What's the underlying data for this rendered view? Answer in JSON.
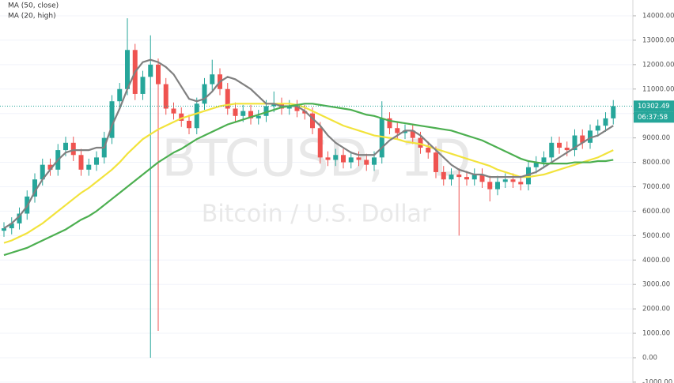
{
  "chart_data": {
    "type": "candlestick",
    "watermark_symbol": "BTCUSD, 1D",
    "watermark_name": "Bitcoin / U.S. Dollar",
    "open": [
      5200,
      5300,
      5500,
      5900,
      6600,
      7300,
      7900,
      7700,
      8500,
      8800,
      8300,
      7700,
      7900,
      8200,
      9000,
      10500,
      11000,
      12600,
      10800,
      11500,
      12000,
      11200,
      10200,
      10000,
      9700,
      9400,
      10400,
      11200,
      11600,
      11000,
      10200,
      9900,
      10100,
      9800,
      9900,
      10300,
      10400,
      10200,
      10300,
      10100,
      10000,
      9400,
      8200,
      8100,
      8300,
      8000,
      8200,
      8100,
      7900,
      8200,
      9800,
      9400,
      9200,
      9300,
      9000,
      8600,
      8400,
      7600,
      7300,
      7500,
      7400,
      7300,
      7500,
      7200,
      6900,
      7200,
      7300,
      7200,
      7100,
      7800,
      8000,
      8200,
      8800,
      8600,
      8500,
      9100,
      8800,
      9300,
      9500,
      9800
    ],
    "high": [
      5550,
      5750,
      6150,
      6850,
      7550,
      8150,
      8150,
      8750,
      9050,
      9050,
      8550,
      8150,
      8450,
      9250,
      10750,
      11250,
      13900,
      12850,
      11750,
      13200,
      12250,
      11450,
      10450,
      10250,
      9950,
      10650,
      11450,
      12200,
      11850,
      11250,
      10450,
      10350,
      10350,
      10150,
      10550,
      10900,
      10650,
      10550,
      10550,
      10350,
      10250,
      9650,
      8450,
      8550,
      8550,
      8450,
      8450,
      8350,
      8450,
      10500,
      10050,
      9650,
      9550,
      9550,
      9250,
      8850,
      8650,
      7850,
      7750,
      7750,
      7650,
      7750,
      7750,
      7450,
      7450,
      7550,
      7550,
      7450,
      8050,
      8250,
      8450,
      9050,
      9050,
      8850,
      9350,
      9350,
      9550,
      9750,
      10050,
      10550
    ],
    "low": [
      4950,
      5050,
      5250,
      5650,
      6350,
      7050,
      7450,
      7450,
      8250,
      8050,
      7450,
      7450,
      7650,
      7950,
      8750,
      10250,
      10750,
      10550,
      10550,
      0,
      1100,
      9950,
      9750,
      9450,
      9150,
      9150,
      10150,
      10950,
      10750,
      9950,
      9650,
      9650,
      9550,
      9550,
      9650,
      10050,
      9950,
      9950,
      9850,
      9750,
      9150,
      7950,
      7850,
      7850,
      7750,
      7750,
      7850,
      7650,
      7650,
      7950,
      9150,
      8950,
      8950,
      8750,
      8350,
      8150,
      7350,
      7050,
      7050,
      5000,
      7050,
      7050,
      6950,
      6400,
      6650,
      6950,
      6950,
      6850,
      6850,
      7550,
      7750,
      7950,
      8350,
      8250,
      8250,
      8550,
      8550,
      9050,
      9250,
      9550
    ],
    "close": [
      5300,
      5500,
      5900,
      6600,
      7300,
      7900,
      7700,
      8500,
      8800,
      8300,
      7700,
      7900,
      8200,
      9000,
      10500,
      11000,
      12600,
      10800,
      11500,
      12000,
      11200,
      10200,
      10000,
      9700,
      9400,
      10400,
      11200,
      11600,
      11000,
      10200,
      9900,
      10100,
      9800,
      9900,
      10300,
      10400,
      10200,
      10300,
      10100,
      10000,
      9400,
      8200,
      8100,
      8300,
      8000,
      8200,
      8100,
      7900,
      8200,
      9800,
      9400,
      9200,
      9300,
      9000,
      8600,
      8400,
      7600,
      7300,
      7500,
      7400,
      7300,
      7500,
      7200,
      6900,
      7200,
      7300,
      7200,
      7100,
      7800,
      8000,
      8200,
      8800,
      8600,
      8500,
      9100,
      8800,
      9300,
      9500,
      9800,
      10300
    ],
    "up_color": "#26a69a",
    "down_color": "#ef5350",
    "series": [
      {
        "name": "MA (50, close)",
        "color": "#f2e33c",
        "values": [
          4700,
          4800,
          4950,
          5100,
          5300,
          5500,
          5750,
          6000,
          6250,
          6500,
          6750,
          6950,
          7200,
          7450,
          7700,
          8000,
          8350,
          8650,
          8950,
          9150,
          9350,
          9500,
          9650,
          9800,
          9900,
          10000,
          10100,
          10200,
          10300,
          10350,
          10400,
          10400,
          10400,
          10400,
          10400,
          10400,
          10400,
          10400,
          10350,
          10250,
          10100,
          9950,
          9800,
          9650,
          9500,
          9400,
          9300,
          9200,
          9100,
          9050,
          9000,
          8950,
          8850,
          8800,
          8750,
          8650,
          8550,
          8450,
          8350,
          8250,
          8150,
          8050,
          7950,
          7850,
          7700,
          7600,
          7500,
          7400,
          7400,
          7450,
          7500,
          7600,
          7700,
          7800,
          7900,
          8000,
          8100,
          8200,
          8350,
          8500
        ]
      },
      {
        "name": "MA (20, high)",
        "color": "#808080",
        "values": [
          5300,
          5500,
          5800,
          6200,
          6800,
          7300,
          7700,
          8100,
          8400,
          8500,
          8500,
          8500,
          8600,
          8600,
          9500,
          10200,
          11000,
          11700,
          12100,
          12200,
          12100,
          11900,
          11600,
          11100,
          10600,
          10500,
          10600,
          10900,
          11300,
          11500,
          11400,
          11200,
          11000,
          10700,
          10400,
          10400,
          10300,
          10300,
          10300,
          10100,
          9800,
          9500,
          9100,
          8800,
          8600,
          8400,
          8300,
          8300,
          8300,
          8600,
          8900,
          9100,
          9300,
          9300,
          9100,
          8800,
          8500,
          8200,
          7900,
          7700,
          7600,
          7500,
          7500,
          7400,
          7400,
          7400,
          7400,
          7400,
          7500,
          7600,
          7800,
          8000,
          8200,
          8400,
          8600,
          8800,
          9000,
          9100,
          9300,
          9500
        ]
      },
      {
        "color": "#4caf50",
        "values": [
          4200,
          4300,
          4400,
          4500,
          4650,
          4800,
          4950,
          5100,
          5250,
          5450,
          5650,
          5800,
          6000,
          6250,
          6500,
          6750,
          7000,
          7250,
          7500,
          7750,
          8000,
          8200,
          8400,
          8550,
          8750,
          8950,
          9100,
          9250,
          9400,
          9550,
          9650,
          9750,
          9850,
          9950,
          10050,
          10150,
          10250,
          10300,
          10350,
          10400,
          10400,
          10350,
          10300,
          10250,
          10200,
          10150,
          10050,
          9950,
          9900,
          9800,
          9700,
          9650,
          9600,
          9550,
          9500,
          9450,
          9400,
          9350,
          9300,
          9200,
          9100,
          9000,
          8900,
          8750,
          8600,
          8450,
          8300,
          8150,
          8050,
          8000,
          7950,
          7950,
          7950,
          7950,
          8000,
          8000,
          8000,
          8050,
          8050,
          8100
        ]
      }
    ],
    "ylim": [
      -1035,
      14646
    ],
    "yticks": [
      {
        "value": 14000,
        "label": "14000.00"
      },
      {
        "value": 13000,
        "label": "13000.00"
      },
      {
        "value": 12000,
        "label": "12000.00"
      },
      {
        "value": 11000,
        "label": "11000.00"
      },
      {
        "value": 10000,
        "label": "10000.00"
      },
      {
        "value": 9000,
        "label": "9000.00"
      },
      {
        "value": 8000,
        "label": "8000.00"
      },
      {
        "value": 7000,
        "label": "7000.00"
      },
      {
        "value": 6000,
        "label": "6000.00"
      },
      {
        "value": 5000,
        "label": "5000.00"
      },
      {
        "value": 4000,
        "label": "4000.00"
      },
      {
        "value": 3000,
        "label": "3000.00"
      },
      {
        "value": 2000,
        "label": "2000.00"
      },
      {
        "value": 1000,
        "label": "1000.00"
      },
      {
        "value": 0,
        "label": "0.00"
      },
      {
        "value": -1000,
        "label": "-1000.00"
      }
    ],
    "grid": true,
    "last_price": 10302.49,
    "countdown": "06:37:58"
  }
}
